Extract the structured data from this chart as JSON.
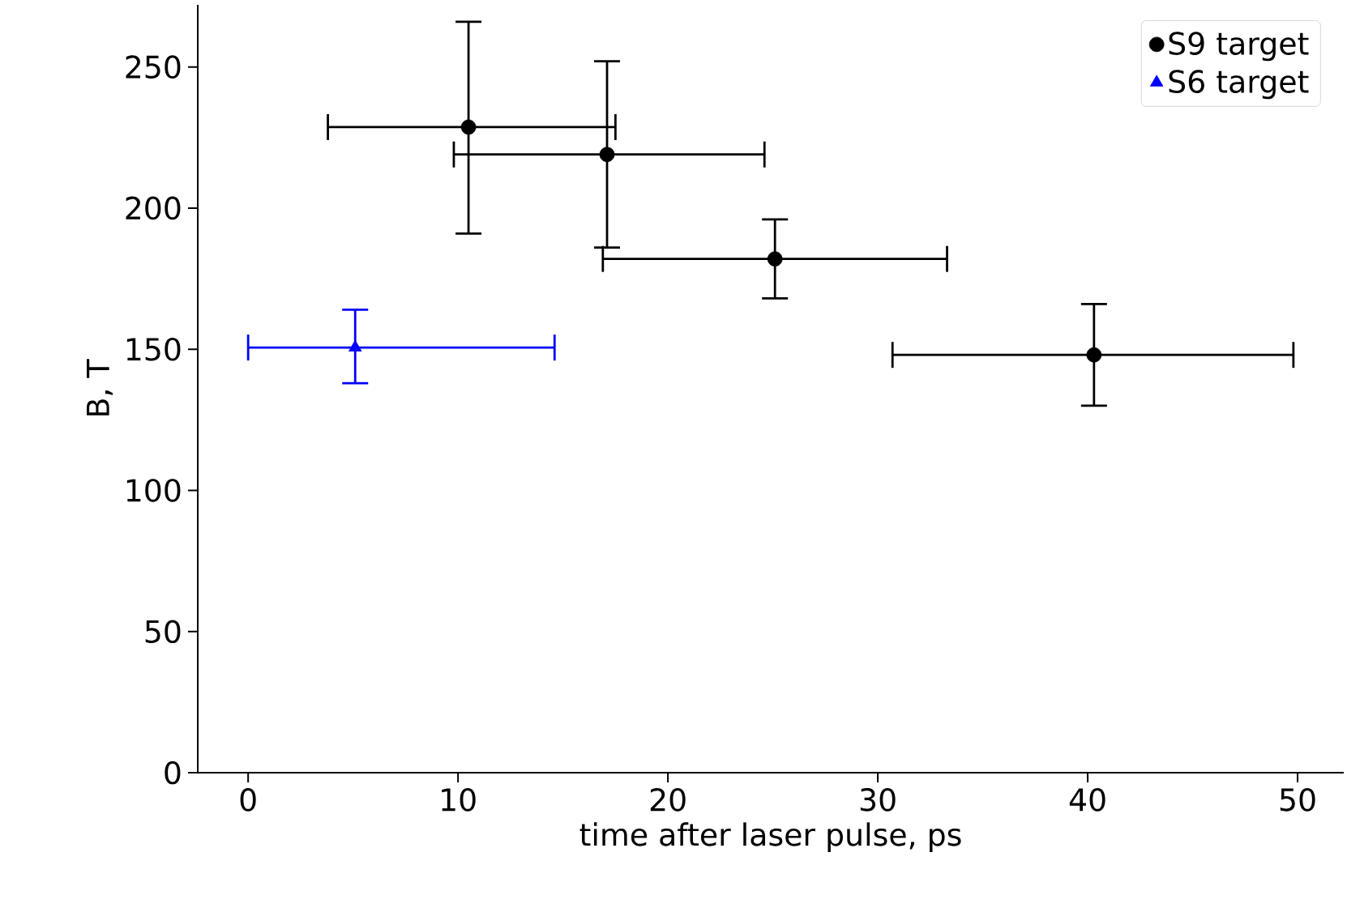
{
  "chart_data": {
    "type": "scatter",
    "xlabel": "time after laser pulse, ps",
    "ylabel": "B, T",
    "xlim": [
      -2.4,
      52.2
    ],
    "ylim": [
      0,
      272
    ],
    "xticks": [
      0,
      10,
      20,
      30,
      40,
      50
    ],
    "yticks": [
      0,
      50,
      100,
      150,
      200,
      250
    ],
    "legend": "top right",
    "series": [
      {
        "name": "S9 target",
        "color": "#000000",
        "marker": "circle",
        "x": [
          10.5,
          17.1,
          25.1,
          40.3
        ],
        "values": [
          228.7,
          219,
          182,
          148
        ],
        "xerrors": [
          [
            3.8,
            17.5
          ],
          [
            9.8,
            24.6
          ],
          [
            16.9,
            33.3
          ],
          [
            30.7,
            49.8
          ]
        ],
        "errors": [
          [
            191,
            266
          ],
          [
            186,
            252
          ],
          [
            168,
            196
          ],
          [
            130,
            166
          ]
        ]
      },
      {
        "name": "S6 target",
        "color": "#0000ff",
        "marker": "triangle",
        "x": [
          5.1
        ],
        "values": [
          150.6
        ],
        "xerrors": [
          [
            0,
            14.6
          ]
        ],
        "errors": [
          [
            138,
            164
          ]
        ]
      }
    ]
  }
}
